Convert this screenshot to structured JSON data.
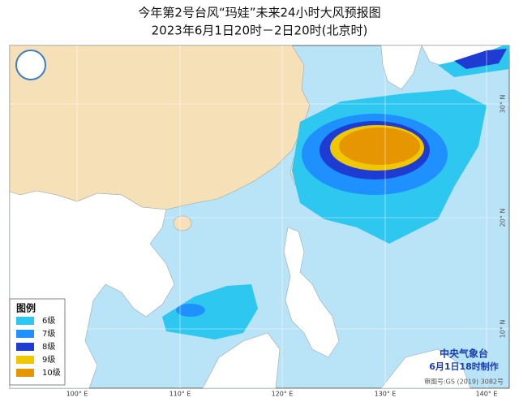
{
  "header": {
    "title": "今年第2号台风“玛娃”未来24小时大风预报图",
    "subtitle": "2023年6月1日20时－2日20时(北京时)"
  },
  "legend": {
    "title": "图例",
    "items": [
      {
        "label": "6级",
        "color": "#2ec7f0"
      },
      {
        "label": "7级",
        "color": "#1e90ff"
      },
      {
        "label": "8级",
        "color": "#1e3cd2"
      },
      {
        "label": "9级",
        "color": "#f0c800"
      },
      {
        "label": "10级",
        "color": "#e69600"
      }
    ]
  },
  "footer": {
    "agency": "中央气象台",
    "issued": "6月1日18时制作",
    "review_number": "审图号:GS (2019) 3082号"
  },
  "axes": {
    "longitudes": [
      "100° E",
      "110° E",
      "120° E",
      "130° E",
      "140° E"
    ],
    "latitudes": [
      "30° N",
      "20° N",
      "10° N"
    ]
  }
}
